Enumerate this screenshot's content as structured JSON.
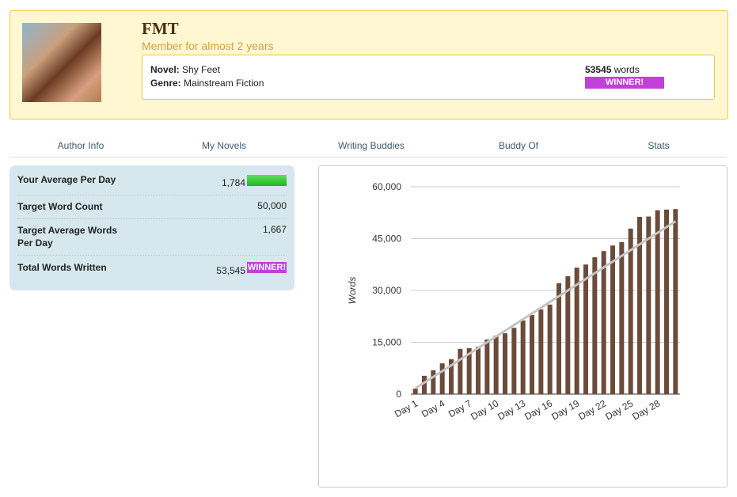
{
  "profile": {
    "name": "FMT",
    "member_since": "Member for almost 2 years",
    "novel_label": "Novel:",
    "novel": "Shy Feet",
    "genre_label": "Genre:",
    "genre": "Mainstream Fiction",
    "word_count": "53545",
    "word_unit": "words",
    "badge": "WINNER!"
  },
  "tabs": [
    "Author Info",
    "My Novels",
    "Writing Buddies",
    "Buddy Of",
    "Stats"
  ],
  "stats": {
    "rows": [
      {
        "label": "Your Average Per Day",
        "value": "1,784"
      },
      {
        "label": "Target Word Count",
        "value": "50,000"
      },
      {
        "label": "Target Average Words Per Day",
        "value": "1,667"
      },
      {
        "label": "Total Words Written",
        "value": "53,545"
      }
    ],
    "badge": "WINNER!"
  },
  "chart_data": {
    "type": "bar",
    "ylabel": "Words",
    "color": "#6b4b3a",
    "categories": [
      "Day 1",
      null,
      null,
      "Day 4",
      null,
      null,
      "Day 7",
      null,
      null,
      "Day 10",
      null,
      null,
      "Day 13",
      null,
      null,
      "Day 16",
      null,
      null,
      "Day 19",
      null,
      null,
      "Day 22",
      null,
      null,
      "Day 25",
      null,
      null,
      "Day 28",
      null,
      null
    ],
    "values": [
      1600,
      5300,
      6900,
      8900,
      10100,
      13100,
      13300,
      13700,
      15800,
      16900,
      17600,
      19200,
      21300,
      22900,
      24500,
      25900,
      32100,
      34100,
      36600,
      37500,
      39600,
      41400,
      43000,
      44000,
      47900,
      51300,
      51400,
      53200,
      53400,
      53545
    ],
    "trend": {
      "start": 1667,
      "end": 50000,
      "color": "#c4c4c4"
    },
    "ylim": [
      0,
      60000
    ],
    "yticks": [
      0,
      {
        "value": 15000,
        "label": "15,000"
      },
      {
        "value": 30000,
        "label": "30,000"
      },
      {
        "value": 45000,
        "label": "45,000"
      },
      {
        "value": 60000,
        "label": "60,000"
      }
    ],
    "grid": true
  }
}
